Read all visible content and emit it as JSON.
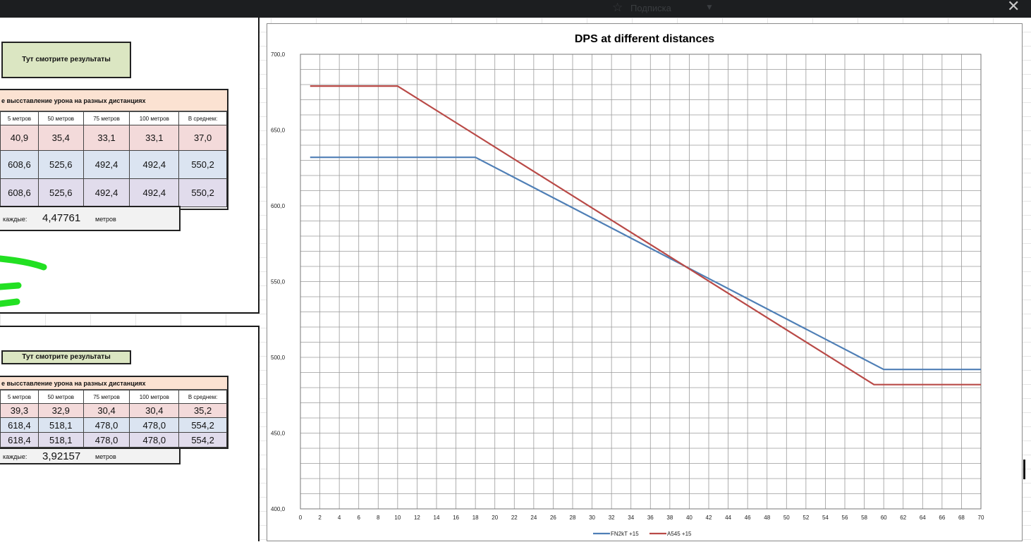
{
  "topbar": {
    "favorite_label": "Подписка",
    "close_glyph": "✕",
    "star_icon": "star-icon",
    "dropdown_icon": "chevron-down-icon"
  },
  "panel1": {
    "results_button": "Тут смотрите результаты",
    "table_title": "е высставление урона на разных дистанциях",
    "headers": [
      "5 метров",
      "50 метров",
      "75 метров",
      "100 метров",
      "В среднем:"
    ],
    "rows": [
      [
        "40,9",
        "35,4",
        "33,1",
        "33,1",
        "37,0"
      ],
      [
        "608,6",
        "525,6",
        "492,4",
        "492,4",
        "550,2"
      ],
      [
        "608,6",
        "525,6",
        "492,4",
        "492,4",
        "550,2"
      ]
    ],
    "note_label": "каждые:",
    "note_value": "4,47761",
    "note_unit": "метров"
  },
  "panel2": {
    "results_button": "Тут смотрите результаты",
    "table_title": "е высставление урона на разных дистанциях",
    "headers": [
      "5 метров",
      "50 метров",
      "75 метров",
      "100 метров",
      "В среднем:"
    ],
    "rows": [
      [
        "39,3",
        "32,9",
        "30,4",
        "30,4",
        "35,2"
      ],
      [
        "618,4",
        "518,1",
        "478,0",
        "478,0",
        "554,2"
      ],
      [
        "618,4",
        "518,1",
        "478,0",
        "478,0",
        "554,2"
      ]
    ],
    "note_label": "каждые:",
    "note_value": "3,92157",
    "note_unit": "метров"
  },
  "colors": {
    "series1": "#4f7fb6",
    "series2": "#b94a47",
    "highlighter": "#22e022"
  },
  "chart_data": {
    "type": "line",
    "title": "DPS at different distances",
    "xlim": [
      0,
      70
    ],
    "ylim": [
      400,
      700
    ],
    "x_ticks": [
      0,
      2,
      4,
      6,
      8,
      10,
      12,
      14,
      16,
      18,
      20,
      22,
      24,
      26,
      28,
      30,
      32,
      34,
      36,
      38,
      40,
      42,
      44,
      46,
      48,
      50,
      52,
      54,
      56,
      58,
      60,
      62,
      64,
      66,
      68,
      70
    ],
    "y_ticks": [
      400,
      450,
      500,
      550,
      600,
      650,
      700
    ],
    "y_tick_labels": [
      "400,0",
      "450,0",
      "500,0",
      "550,0",
      "600,0",
      "650,0",
      "700,0"
    ],
    "grid": true,
    "legend": "bottom",
    "series": [
      {
        "name": "FN2kT +15",
        "x": [
          1,
          18,
          60,
          70
        ],
        "y": [
          632,
          632,
          492,
          492
        ]
      },
      {
        "name": "A545 +15",
        "x": [
          1,
          10,
          59,
          70
        ],
        "y": [
          679,
          679,
          482,
          482
        ]
      }
    ]
  }
}
